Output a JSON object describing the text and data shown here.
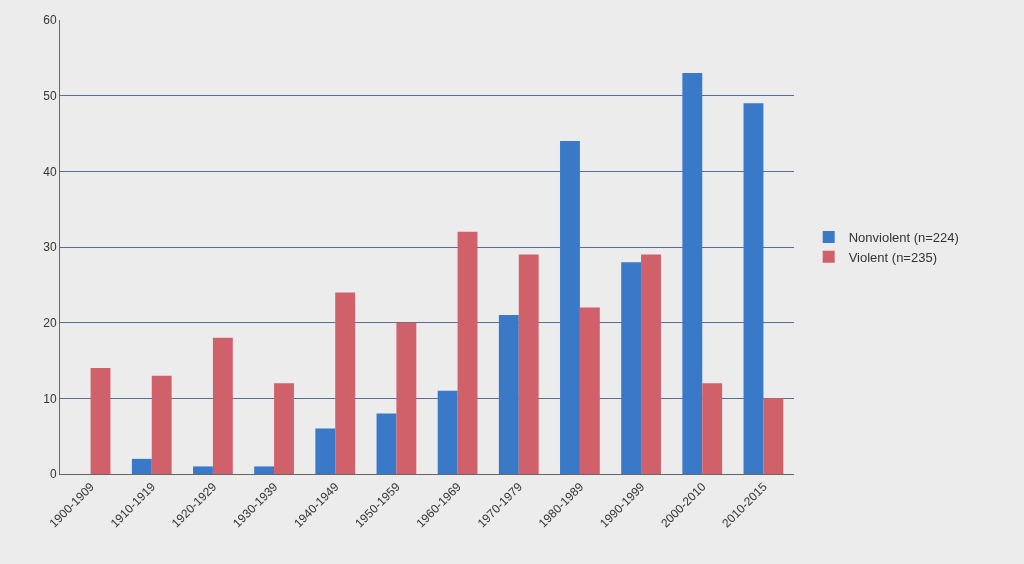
{
  "chart_data": {
    "type": "bar",
    "categories": [
      "1900-1909",
      "1910-1919",
      "1920-1929",
      "1930-1939",
      "1940-1949",
      "1950-1959",
      "1960-1969",
      "1970-1979",
      "1980-1989",
      "1990-1999",
      "2000-2010",
      "2010-2015"
    ],
    "series": [
      {
        "name": "Nonviolent (n=224)",
        "color": "#3a78c8",
        "values": [
          0,
          2,
          1,
          1,
          6,
          8,
          11,
          21,
          44,
          28,
          53,
          49
        ]
      },
      {
        "name": "Violent (n=235)",
        "color": "#d0606a",
        "values": [
          14,
          13,
          18,
          12,
          24,
          20,
          32,
          29,
          22,
          29,
          12,
          10
        ]
      }
    ],
    "ylim": [
      0,
      60
    ],
    "yticks": [
      0,
      10,
      20,
      30,
      40,
      50,
      60
    ],
    "grid": "y",
    "legend": "right"
  }
}
